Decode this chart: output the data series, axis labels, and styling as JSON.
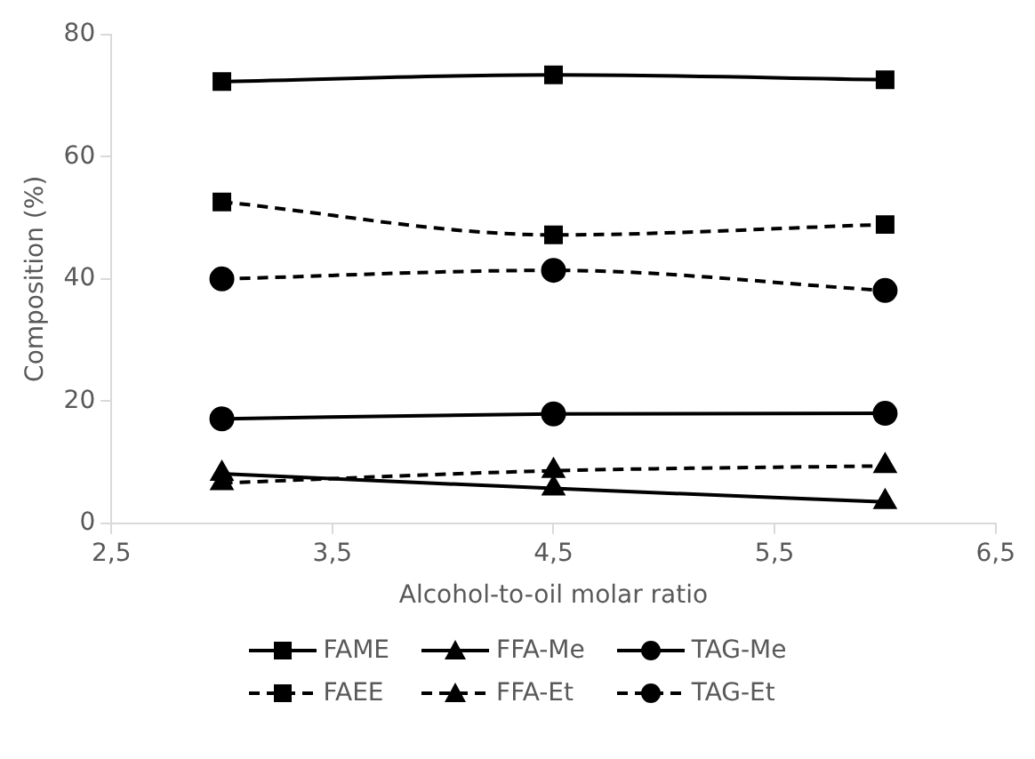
{
  "chart_data": {
    "type": "line",
    "xlabel": "Alcohol-to-oil molar ratio",
    "ylabel": "Composition (%)",
    "x": [
      3,
      4.5,
      6
    ],
    "xlim": [
      2.5,
      6.5
    ],
    "xticks": [
      {
        "value": 2.5,
        "label": "2,5"
      },
      {
        "value": 3.5,
        "label": "3,5"
      },
      {
        "value": 4.5,
        "label": "4,5"
      },
      {
        "value": 5.5,
        "label": "5,5"
      },
      {
        "value": 6.5,
        "label": "6,5"
      }
    ],
    "ylim": [
      0,
      80
    ],
    "yticks": [
      0,
      20,
      40,
      60,
      80
    ],
    "grid": false,
    "legend": "bottom",
    "series": [
      {
        "name": "FAME",
        "color": "#000000",
        "marker": "square",
        "line_style": "solid",
        "values": [
          72.3,
          73.4,
          72.6
        ]
      },
      {
        "name": "FFA-Me",
        "color": "#000000",
        "marker": "triangle",
        "line_style": "solid",
        "values": [
          8.1,
          5.7,
          3.5
        ]
      },
      {
        "name": "TAG-Me",
        "color": "#000000",
        "marker": "circle",
        "line_style": "solid",
        "values": [
          17.1,
          17.9,
          18.0
        ]
      },
      {
        "name": "FAEE",
        "color": "#000000",
        "marker": "square",
        "line_style": "dashed",
        "values": [
          52.6,
          47.2,
          48.9
        ]
      },
      {
        "name": "FFA-Et",
        "color": "#000000",
        "marker": "triangle",
        "line_style": "dashed",
        "values": [
          6.6,
          8.6,
          9.4
        ]
      },
      {
        "name": "TAG-Et",
        "color": "#000000",
        "marker": "circle",
        "line_style": "dashed",
        "values": [
          40.0,
          41.4,
          38.1
        ]
      }
    ]
  }
}
